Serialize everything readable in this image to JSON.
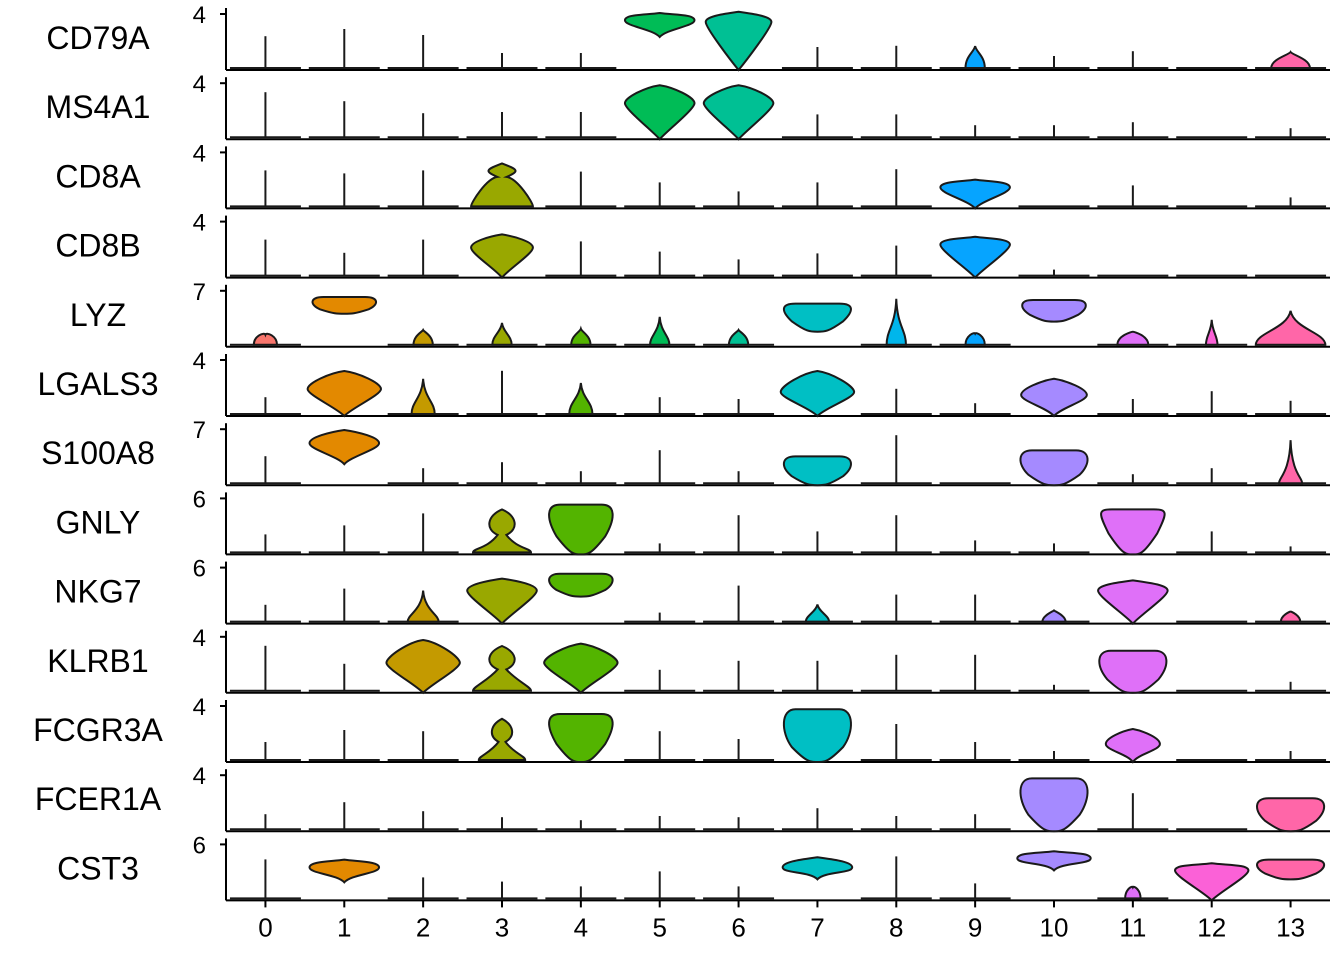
{
  "chart_data": {
    "type": "violin",
    "title": "",
    "xlabel": "",
    "ylabel": "",
    "clusters": [
      "0",
      "1",
      "2",
      "3",
      "4",
      "5",
      "6",
      "7",
      "8",
      "9",
      "10",
      "11",
      "12",
      "13"
    ],
    "cluster_colors": [
      "#F8766D",
      "#E38900",
      "#C49A00",
      "#99A800",
      "#53B400",
      "#00BC56",
      "#00C094",
      "#00BFC4",
      "#00B6EB",
      "#06A4FF",
      "#A58AFF",
      "#DF70F8",
      "#FB61D7",
      "#FF66A8"
    ],
    "colors": {
      "outline": "#1a1a1a",
      "axis": "#000000",
      "background": "#ffffff"
    },
    "genes": [
      {
        "name": "CD79A",
        "ymax_label": "4",
        "ymax": 4,
        "violins": [
          {
            "k": "line",
            "v": 0.53
          },
          {
            "k": "line",
            "v": 0.65
          },
          {
            "k": "line",
            "v": 0.55
          },
          {
            "k": "line",
            "v": 0.25
          },
          {
            "k": "line",
            "v": 0.25
          },
          {
            "k": "violin",
            "v": 0.83,
            "w": 0.9,
            "lo": 0.55,
            "top": 0.95
          },
          {
            "k": "violin",
            "v": 0.8,
            "w": 0.85,
            "lo": 0.0,
            "top": 0.97
          },
          {
            "k": "line",
            "v": 0.35
          },
          {
            "k": "line",
            "v": 0.37
          },
          {
            "k": "small",
            "v": 0.2,
            "w": 0.25,
            "lo": 0.0,
            "top": 0.4
          },
          {
            "k": "line",
            "v": 0.2
          },
          {
            "k": "line",
            "v": 0.28
          },
          {
            "k": "none",
            "v": 0
          },
          {
            "k": "small",
            "v": 0.15,
            "w": 0.5,
            "lo": 0.0,
            "top": 0.3
          }
        ]
      },
      {
        "name": "MS4A1",
        "ymax_label": "4",
        "ymax": 4,
        "violins": [
          {
            "k": "line",
            "v": 0.75
          },
          {
            "k": "line",
            "v": 0.6
          },
          {
            "k": "line",
            "v": 0.4
          },
          {
            "k": "line",
            "v": 0.42
          },
          {
            "k": "line",
            "v": 0.42
          },
          {
            "k": "violin",
            "v": 0.6,
            "w": 0.9,
            "lo": 0.0,
            "top": 0.9
          },
          {
            "k": "violin",
            "v": 0.6,
            "w": 0.9,
            "lo": 0.0,
            "top": 0.9
          },
          {
            "k": "line",
            "v": 0.38
          },
          {
            "k": "line",
            "v": 0.38
          },
          {
            "k": "line",
            "v": 0.2
          },
          {
            "k": "line",
            "v": 0.2
          },
          {
            "k": "line",
            "v": 0.25
          },
          {
            "k": "none",
            "v": 0
          },
          {
            "k": "line",
            "v": 0.15
          }
        ]
      },
      {
        "name": "CD8A",
        "ymax_label": "4",
        "ymax": 4,
        "violins": [
          {
            "k": "line",
            "v": 0.6
          },
          {
            "k": "line",
            "v": 0.55
          },
          {
            "k": "line",
            "v": 0.6
          },
          {
            "k": "violin",
            "v": 0.5,
            "w": 0.8,
            "lo": 0.0,
            "top": 0.75,
            "bimodal": true
          },
          {
            "k": "line",
            "v": 0.58
          },
          {
            "k": "line",
            "v": 0.4
          },
          {
            "k": "line",
            "v": 0.25
          },
          {
            "k": "line",
            "v": 0.4
          },
          {
            "k": "line",
            "v": 0.62
          },
          {
            "k": "violin",
            "v": 0.35,
            "w": 0.9,
            "lo": 0.0,
            "top": 0.48
          },
          {
            "k": "none",
            "v": 0
          },
          {
            "k": "line",
            "v": 0.35
          },
          {
            "k": "none",
            "v": 0
          },
          {
            "k": "line",
            "v": 0.15
          }
        ]
      },
      {
        "name": "CD8B",
        "ymax_label": "4",
        "ymax": 4,
        "violins": [
          {
            "k": "line",
            "v": 0.6
          },
          {
            "k": "line",
            "v": 0.38
          },
          {
            "k": "line",
            "v": 0.6
          },
          {
            "k": "violin",
            "v": 0.5,
            "w": 0.8,
            "lo": 0.0,
            "top": 0.72
          },
          {
            "k": "line",
            "v": 0.57
          },
          {
            "k": "line",
            "v": 0.4
          },
          {
            "k": "line",
            "v": 0.27
          },
          {
            "k": "line",
            "v": 0.37
          },
          {
            "k": "line",
            "v": 0.5
          },
          {
            "k": "violin",
            "v": 0.55,
            "w": 0.9,
            "lo": 0.0,
            "top": 0.68
          },
          {
            "k": "line",
            "v": 0.1
          },
          {
            "k": "none",
            "v": 0
          },
          {
            "k": "none",
            "v": 0
          },
          {
            "k": "none",
            "v": 0
          }
        ]
      },
      {
        "name": "LYZ",
        "ymax_label": "7",
        "ymax": 7,
        "violins": [
          {
            "k": "small",
            "v": 0.15,
            "w": 0.3,
            "lo": 0.0,
            "top": 0.2
          },
          {
            "k": "violin",
            "v": 0.7,
            "w": 0.9,
            "lo": 0.55,
            "top": 0.83,
            "flat": true
          },
          {
            "k": "small",
            "v": 0.15,
            "w": 0.25,
            "lo": 0.0,
            "top": 0.28
          },
          {
            "k": "small",
            "v": 0.15,
            "w": 0.25,
            "lo": 0.0,
            "top": 0.4
          },
          {
            "k": "small",
            "v": 0.15,
            "w": 0.25,
            "lo": 0.0,
            "top": 0.3
          },
          {
            "k": "small",
            "v": 0.15,
            "w": 0.25,
            "lo": 0.0,
            "top": 0.5
          },
          {
            "k": "small",
            "v": 0.15,
            "w": 0.25,
            "lo": 0.0,
            "top": 0.28
          },
          {
            "k": "violin",
            "v": 0.6,
            "w": 0.95,
            "lo": 0.25,
            "top": 0.72,
            "flat": true
          },
          {
            "k": "small",
            "v": 0.25,
            "w": 0.25,
            "lo": 0.0,
            "top": 0.8
          },
          {
            "k": "small",
            "v": 0.15,
            "w": 0.25,
            "lo": 0.0,
            "top": 0.22
          },
          {
            "k": "violin",
            "v": 0.65,
            "w": 0.9,
            "lo": 0.42,
            "top": 0.78,
            "flat": true
          },
          {
            "k": "small",
            "v": 0.15,
            "w": 0.4,
            "lo": 0.0,
            "top": 0.25
          },
          {
            "k": "small",
            "v": 0.15,
            "w": 0.15,
            "lo": 0.0,
            "top": 0.45
          },
          {
            "k": "small",
            "v": 0.2,
            "w": 0.9,
            "lo": 0.0,
            "top": 0.6
          }
        ]
      },
      {
        "name": "LGALS3",
        "ymax_label": "4",
        "ymax": 4,
        "violins": [
          {
            "k": "line",
            "v": 0.28
          },
          {
            "k": "violin",
            "v": 0.45,
            "w": 0.95,
            "lo": 0.0,
            "top": 0.75
          },
          {
            "k": "small",
            "v": 0.2,
            "w": 0.3,
            "lo": 0.0,
            "top": 0.62
          },
          {
            "k": "line",
            "v": 0.72
          },
          {
            "k": "small",
            "v": 0.2,
            "w": 0.3,
            "lo": 0.0,
            "top": 0.55
          },
          {
            "k": "line",
            "v": 0.28
          },
          {
            "k": "line",
            "v": 0.25
          },
          {
            "k": "violin",
            "v": 0.4,
            "w": 0.95,
            "lo": 0.0,
            "top": 0.75
          },
          {
            "k": "line",
            "v": 0.42
          },
          {
            "k": "line",
            "v": 0.18
          },
          {
            "k": "violin",
            "v": 0.35,
            "w": 0.85,
            "lo": 0.0,
            "top": 0.62
          },
          {
            "k": "line",
            "v": 0.25
          },
          {
            "k": "line",
            "v": 0.38
          },
          {
            "k": "line",
            "v": 0.22
          }
        ]
      },
      {
        "name": "S100A8",
        "ymax_label": "7",
        "ymax": 7,
        "violins": [
          {
            "k": "line",
            "v": 0.45
          },
          {
            "k": "violin",
            "v": 0.7,
            "w": 0.9,
            "lo": 0.35,
            "top": 0.92
          },
          {
            "k": "line",
            "v": 0.25
          },
          {
            "k": "line",
            "v": 0.35
          },
          {
            "k": "line",
            "v": 0.2
          },
          {
            "k": "line",
            "v": 0.55
          },
          {
            "k": "line",
            "v": 0.2
          },
          {
            "k": "violin",
            "v": 0.3,
            "w": 0.95,
            "lo": 0.0,
            "top": 0.48,
            "flat": true
          },
          {
            "k": "line",
            "v": 0.8
          },
          {
            "k": "none",
            "v": 0
          },
          {
            "k": "violin",
            "v": 0.35,
            "w": 0.95,
            "lo": 0.0,
            "top": 0.58,
            "flat": true
          },
          {
            "k": "line",
            "v": 0.15
          },
          {
            "k": "line",
            "v": 0.25
          },
          {
            "k": "small",
            "v": 0.1,
            "w": 0.3,
            "lo": 0.0,
            "top": 0.75
          }
        ]
      },
      {
        "name": "GNLY",
        "ymax_label": "6",
        "ymax": 6,
        "violins": [
          {
            "k": "line",
            "v": 0.3
          },
          {
            "k": "line",
            "v": 0.45
          },
          {
            "k": "line",
            "v": 0.65
          },
          {
            "k": "violin",
            "v": 0.1,
            "w": 0.75,
            "lo": 0.0,
            "top": 0.75,
            "bimodal": true
          },
          {
            "k": "violin",
            "v": 0.6,
            "w": 0.9,
            "lo": 0.0,
            "top": 0.83,
            "flat": true
          },
          {
            "k": "line",
            "v": 0.15
          },
          {
            "k": "line",
            "v": 0.62
          },
          {
            "k": "line",
            "v": 0.35
          },
          {
            "k": "line",
            "v": 0.62
          },
          {
            "k": "line",
            "v": 0.2
          },
          {
            "k": "line",
            "v": 0.15
          },
          {
            "k": "violin",
            "v": 0.7,
            "w": 0.9,
            "lo": 0.0,
            "top": 0.75,
            "flat": true
          },
          {
            "k": "line",
            "v": 0.35
          },
          {
            "k": "line",
            "v": 0.1
          }
        ]
      },
      {
        "name": "NKG7",
        "ymax_label": "6",
        "ymax": 6,
        "violins": [
          {
            "k": "line",
            "v": 0.28
          },
          {
            "k": "line",
            "v": 0.55
          },
          {
            "k": "small",
            "v": 0.12,
            "w": 0.4,
            "lo": 0.0,
            "top": 0.55
          },
          {
            "k": "violin",
            "v": 0.55,
            "w": 0.9,
            "lo": 0.0,
            "top": 0.75
          },
          {
            "k": "violin",
            "v": 0.67,
            "w": 0.9,
            "lo": 0.45,
            "top": 0.83,
            "flat": true
          },
          {
            "k": "line",
            "v": 0.15
          },
          {
            "k": "line",
            "v": 0.6
          },
          {
            "k": "small",
            "v": 0.1,
            "w": 0.3,
            "lo": 0.0,
            "top": 0.32
          },
          {
            "k": "line",
            "v": 0.45
          },
          {
            "k": "line",
            "v": 0.45
          },
          {
            "k": "small",
            "v": 0.1,
            "w": 0.3,
            "lo": 0.0,
            "top": 0.22
          },
          {
            "k": "violin",
            "v": 0.55,
            "w": 0.9,
            "lo": 0.0,
            "top": 0.72
          },
          {
            "k": "none",
            "v": 0
          },
          {
            "k": "small",
            "v": 0.1,
            "w": 0.25,
            "lo": 0.0,
            "top": 0.2
          }
        ]
      },
      {
        "name": "KLRB1",
        "ymax_label": "4",
        "ymax": 4,
        "violins": [
          {
            "k": "line",
            "v": 0.75
          },
          {
            "k": "line",
            "v": 0.45
          },
          {
            "k": "violin",
            "v": 0.5,
            "w": 0.95,
            "lo": 0.0,
            "top": 0.88
          },
          {
            "k": "violin",
            "v": 0.2,
            "w": 0.75,
            "lo": 0.0,
            "top": 0.78,
            "bimodal": true
          },
          {
            "k": "violin",
            "v": 0.5,
            "w": 0.95,
            "lo": 0.0,
            "top": 0.82
          },
          {
            "k": "line",
            "v": 0.35
          },
          {
            "k": "line",
            "v": 0.5
          },
          {
            "k": "line",
            "v": 0.5
          },
          {
            "k": "line",
            "v": 0.6
          },
          {
            "k": "line",
            "v": 0.6
          },
          {
            "k": "line",
            "v": 0.1
          },
          {
            "k": "violin",
            "v": 0.45,
            "w": 0.95,
            "lo": 0.0,
            "top": 0.7,
            "flat": true
          },
          {
            "k": "none",
            "v": 0
          },
          {
            "k": "line",
            "v": 0.15
          }
        ]
      },
      {
        "name": "FCGR3A",
        "ymax_label": "4",
        "ymax": 4,
        "violins": [
          {
            "k": "line",
            "v": 0.3
          },
          {
            "k": "line",
            "v": 0.5
          },
          {
            "k": "line",
            "v": 0.48
          },
          {
            "k": "violin",
            "v": 0.15,
            "w": 0.6,
            "lo": 0.0,
            "top": 0.72,
            "bimodal": true
          },
          {
            "k": "violin",
            "v": 0.6,
            "w": 0.9,
            "lo": 0.0,
            "top": 0.8,
            "flat": true
          },
          {
            "k": "line",
            "v": 0.48
          },
          {
            "k": "line",
            "v": 0.35
          },
          {
            "k": "violin",
            "v": 0.5,
            "w": 0.95,
            "lo": 0.0,
            "top": 0.88,
            "flat": true
          },
          {
            "k": "line",
            "v": 0.6
          },
          {
            "k": "line",
            "v": 0.3
          },
          {
            "k": "line",
            "v": 0.15
          },
          {
            "k": "violin",
            "v": 0.3,
            "w": 0.7,
            "lo": 0.0,
            "top": 0.55
          },
          {
            "k": "none",
            "v": 0
          },
          {
            "k": "line",
            "v": 0.15
          }
        ]
      },
      {
        "name": "FCER1A",
        "ymax_label": "4",
        "ymax": 4,
        "violins": [
          {
            "k": "line",
            "v": 0.25
          },
          {
            "k": "line",
            "v": 0.45
          },
          {
            "k": "line",
            "v": 0.3
          },
          {
            "k": "line",
            "v": 0.2
          },
          {
            "k": "line",
            "v": 0.15
          },
          {
            "k": "line",
            "v": 0.22
          },
          {
            "k": "line",
            "v": 0.2
          },
          {
            "k": "line",
            "v": 0.35
          },
          {
            "k": "line",
            "v": 0.22
          },
          {
            "k": "line",
            "v": 0.25
          },
          {
            "k": "violin",
            "v": 0.55,
            "w": 0.95,
            "lo": 0.0,
            "top": 0.88,
            "flat": true
          },
          {
            "k": "line",
            "v": 0.6
          },
          {
            "k": "none",
            "v": 0
          },
          {
            "k": "violin",
            "v": 0.35,
            "w": 0.95,
            "lo": 0.0,
            "top": 0.55,
            "flat": true
          }
        ]
      },
      {
        "name": "CST3",
        "ymax_label": "6",
        "ymax": 6,
        "violins": [
          {
            "k": "line",
            "v": 0.65
          },
          {
            "k": "violin",
            "v": 0.55,
            "w": 0.9,
            "lo": 0.3,
            "top": 0.68
          },
          {
            "k": "line",
            "v": 0.35
          },
          {
            "k": "line",
            "v": 0.28
          },
          {
            "k": "line",
            "v": 0.2
          },
          {
            "k": "line",
            "v": 0.45
          },
          {
            "k": "line",
            "v": 0.2
          },
          {
            "k": "violin",
            "v": 0.55,
            "w": 0.9,
            "lo": 0.35,
            "top": 0.72
          },
          {
            "k": "line",
            "v": 0.7
          },
          {
            "k": "line",
            "v": 0.25
          },
          {
            "k": "violin",
            "v": 0.7,
            "w": 0.95,
            "lo": 0.5,
            "top": 0.82
          },
          {
            "k": "small",
            "v": 0.15,
            "w": 0.2,
            "lo": 0.0,
            "top": 0.22
          },
          {
            "k": "violin",
            "v": 0.5,
            "w": 0.95,
            "lo": 0.0,
            "top": 0.62
          },
          {
            "k": "violin",
            "v": 0.55,
            "w": 0.95,
            "lo": 0.35,
            "top": 0.68,
            "flat": true
          }
        ]
      }
    ]
  }
}
